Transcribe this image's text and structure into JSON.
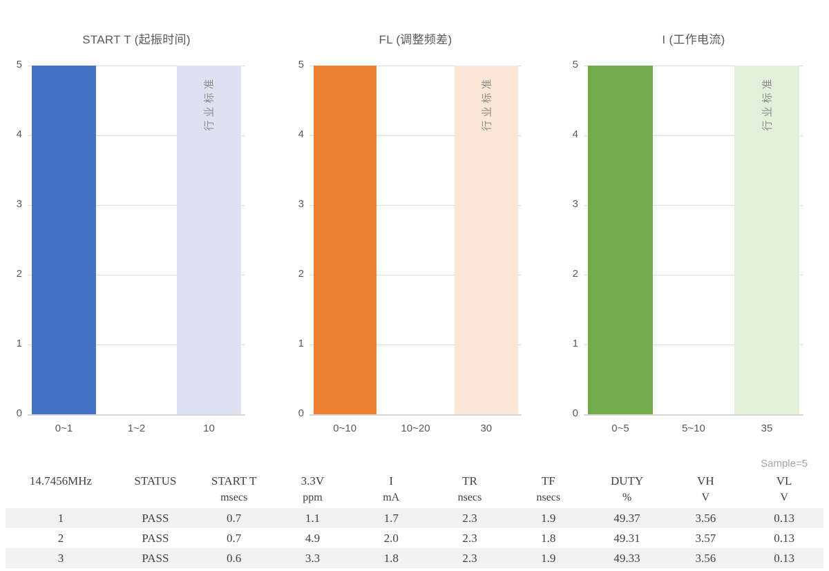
{
  "chart_data": [
    {
      "type": "bar",
      "title": "START T (起振时间)",
      "categories": [
        "0~1",
        "1~2",
        "10"
      ],
      "values": [
        5,
        0,
        5
      ],
      "bar_colors": [
        "#4472C4",
        null,
        "#DCE2F0"
      ],
      "annotations": [
        null,
        null,
        "行业标准"
      ],
      "xlabel": "",
      "ylabel": "",
      "ylim": [
        0,
        5
      ],
      "yticks": [
        0,
        1,
        2,
        3,
        4,
        5
      ],
      "grid": true,
      "legend": null
    },
    {
      "type": "bar",
      "title": "FL (调整频差)",
      "categories": [
        "0~10",
        "10~20",
        "30"
      ],
      "values": [
        5,
        0,
        5
      ],
      "bar_colors": [
        "#ED7D31",
        null,
        "#FBE5D6"
      ],
      "annotations": [
        null,
        null,
        "行业标准"
      ],
      "xlabel": "",
      "ylabel": "",
      "ylim": [
        0,
        5
      ],
      "yticks": [
        0,
        1,
        2,
        3,
        4,
        5
      ],
      "grid": true,
      "legend": null
    },
    {
      "type": "bar",
      "title": "I (工作电流)",
      "categories": [
        "0~5",
        "5~10",
        "35"
      ],
      "values": [
        5,
        0,
        5
      ],
      "bar_colors": [
        "#73AC4B",
        null,
        "#E2EFDA"
      ],
      "annotations": [
        null,
        null,
        "行业标准"
      ],
      "xlabel": "",
      "ylabel": "",
      "ylim": [
        0,
        5
      ],
      "yticks": [
        0,
        1,
        2,
        3,
        4,
        5
      ],
      "grid": true,
      "legend": null
    }
  ],
  "table": {
    "sample_label": "Sample=5",
    "stripe_color": "#F2F2F2",
    "columns": [
      {
        "title": "14.7456MHz",
        "unit": ""
      },
      {
        "title": "STATUS",
        "unit": ""
      },
      {
        "title": "START T",
        "unit": "msecs"
      },
      {
        "title": "3.3V",
        "unit": "ppm"
      },
      {
        "title": "I",
        "unit": "mA"
      },
      {
        "title": "TR",
        "unit": "nsecs"
      },
      {
        "title": "TF",
        "unit": "nsecs"
      },
      {
        "title": "DUTY",
        "unit": "%"
      },
      {
        "title": "VH",
        "unit": "V"
      },
      {
        "title": "VL",
        "unit": "V"
      }
    ],
    "rows": [
      [
        "1",
        "PASS",
        "0.7",
        "1.1",
        "1.7",
        "2.3",
        "1.9",
        "49.37",
        "3.56",
        "0.13"
      ],
      [
        "2",
        "PASS",
        "0.7",
        "4.9",
        "2.0",
        "2.3",
        "1.8",
        "49.31",
        "3.57",
        "0.13"
      ],
      [
        "3",
        "PASS",
        "0.6",
        "3.3",
        "1.8",
        "2.3",
        "1.9",
        "49.33",
        "3.56",
        "0.13"
      ]
    ]
  },
  "colors": {
    "grid": "#DCDCDC",
    "axis": "#D6D6D6",
    "tick_text": "#595959",
    "annotation_text": "#8C8C8C",
    "table_text": "#404040",
    "sample_text": "#A6A6A6"
  }
}
